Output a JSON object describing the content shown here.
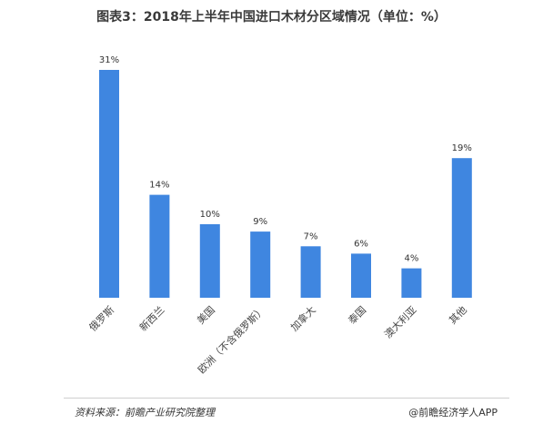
{
  "header": {
    "title": "图表3：2018年上半年中国进口木材分区域情况（单位：%）"
  },
  "chart_data": {
    "type": "bar",
    "categories": [
      "俄罗斯",
      "新西兰",
      "美国",
      "欧洲（不含俄罗斯）",
      "加拿大",
      "泰国",
      "澳大利亚",
      "其他"
    ],
    "values": [
      31,
      14,
      10,
      9,
      7,
      6,
      4,
      19
    ],
    "value_labels": [
      "31%",
      "14%",
      "10%",
      "9%",
      "7%",
      "6%",
      "4%",
      "19%"
    ],
    "ylim": [
      0,
      31
    ],
    "bar_color": "#3f86e0",
    "grid": false
  },
  "footer": {
    "source": "资料来源：前瞻产业研究院整理",
    "brand": "@前瞻经济学人APP"
  }
}
